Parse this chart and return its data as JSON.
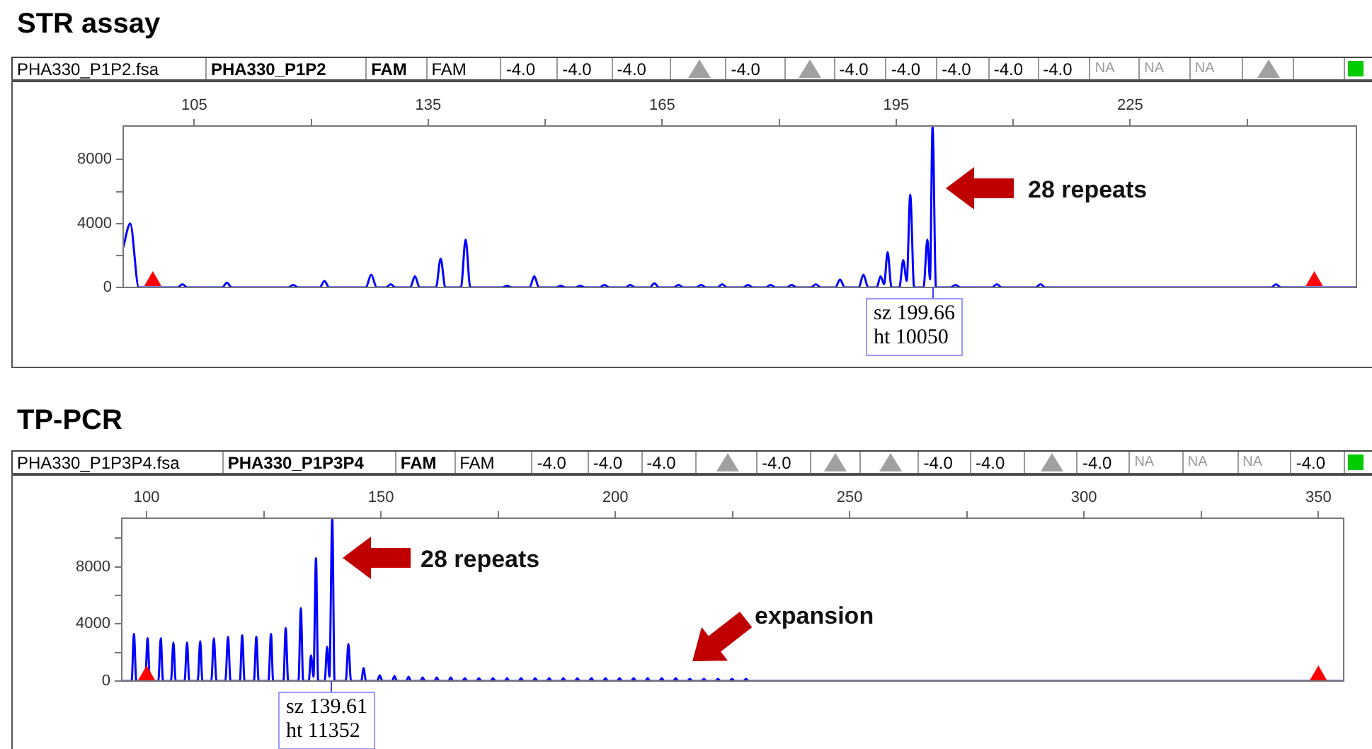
{
  "chart_data": [
    {
      "type": "line",
      "title": "STR assay",
      "marker": "none",
      "annotations": [
        "PHA330_P1P2.fsa",
        "PHA330_P1P2",
        "FAM",
        "FAM",
        "-4.0",
        "-4.0",
        "-4.0",
        "-4.0",
        "-4.0",
        "-4.0",
        "-4.0",
        "-4.0",
        "-4.0",
        "NA",
        "NA",
        "NA",
        "sz 199.66\nht 10050",
        "28 repeats"
      ],
      "xlim": [
        95.9,
        254
      ],
      "xticks": [
        105,
        {
          "value": 120,
          "label": null
        },
        135,
        {
          "value": 150,
          "label": null
        },
        165,
        {
          "value": 180,
          "label": null
        },
        195,
        {
          "value": 210,
          "label": null
        },
        225,
        {
          "value": 240,
          "label": null
        }
      ],
      "ylim": [
        0,
        10100
      ],
      "yticks": [
        0,
        {
          "value": 2000,
          "label": null
        },
        4000,
        {
          "value": 6000,
          "label": null
        },
        8000
      ],
      "series": [
        {
          "color": "#0000ff",
          "x": [
            95.9,
            96.8,
            97.9,
            102.9,
            103.5,
            104.1,
            108.6,
            109.2,
            109.8,
            117.1,
            117.7,
            118.3,
            121.1,
            121.7,
            122.3,
            127.0,
            127.7,
            128.4,
            129.6,
            130.2,
            130.8,
            132.7,
            133.3,
            133.9,
            136.0,
            136.6,
            137.2,
            139.2,
            139.8,
            140.4,
            144.5,
            145.1,
            145.7,
            148.0,
            148.6,
            149.2,
            151.4,
            152.0,
            152.6,
            153.9,
            154.5,
            155.1,
            157.0,
            157.6,
            158.2,
            160.3,
            160.9,
            161.5,
            163.4,
            164.0,
            164.6,
            166.5,
            167.1,
            167.7,
            169.4,
            170.0,
            170.6,
            172.1,
            172.7,
            173.3,
            175.4,
            176.0,
            176.6,
            178.3,
            178.9,
            179.5,
            181.0,
            181.6,
            182.2,
            184.1,
            184.7,
            185.3,
            187.2,
            187.8,
            188.4,
            190.2,
            190.8,
            191.4,
            192.5,
            193.0,
            193.45,
            193.9,
            194.4,
            195.4,
            195.9,
            196.35,
            196.8,
            197.3,
            198.5,
            199.0,
            199.33,
            199.66,
            200.1,
            202.0,
            202.6,
            203.2,
            207.3,
            207.9,
            208.5,
            212.9,
            213.5,
            214.1,
            243.1,
            243.7,
            244.3,
            254
          ],
          "values": [
            2500,
            4000,
            0,
            0,
            200,
            0,
            0,
            300,
            0,
            0,
            150,
            0,
            0,
            400,
            0,
            0,
            800,
            0,
            0,
            200,
            0,
            0,
            700,
            0,
            0,
            1800,
            0,
            0,
            3000,
            0,
            0,
            100,
            0,
            0,
            700,
            0,
            0,
            100,
            0,
            0,
            100,
            0,
            0,
            150,
            0,
            0,
            150,
            0,
            0,
            250,
            0,
            0,
            150,
            0,
            0,
            150,
            0,
            0,
            200,
            0,
            0,
            150,
            0,
            0,
            150,
            0,
            0,
            150,
            0,
            0,
            200,
            0,
            0,
            500,
            0,
            0,
            800,
            0,
            0,
            700,
            200,
            2200,
            0,
            0,
            1700,
            400,
            5800,
            0,
            0,
            3000,
            500,
            10050,
            0,
            0,
            150,
            0,
            0,
            200,
            0,
            0,
            200,
            0,
            0,
            200,
            0,
            0
          ]
        },
        {
          "type": "scatter",
          "marker": "triangle",
          "color": "#ff0000",
          "x": [
            99.7,
            248.6
          ],
          "values": [
            400,
            400
          ]
        }
      ]
    },
    {
      "type": "line",
      "title": "TP-PCR",
      "marker": "none",
      "annotations": [
        "PHA330_P1P3P4.fsa",
        "PHA330_P1P3P4",
        "FAM",
        "FAM",
        "-4.0",
        "-4.0",
        "-4.0",
        "-4.0",
        "-4.0",
        "-4.0",
        "-4.0",
        "NA",
        "NA",
        "NA",
        "-4.0",
        "sz 139.61\nht 11352",
        "28 repeats",
        "expansion"
      ],
      "xlim": [
        94.7,
        355.4
      ],
      "xticks": [
        100,
        {
          "value": 125,
          "label": null
        },
        150,
        {
          "value": 175,
          "label": null
        },
        200,
        {
          "value": 225,
          "label": null
        },
        250,
        {
          "value": 275,
          "label": null
        },
        300,
        {
          "value": 325,
          "label": null
        },
        350
      ],
      "ylim": [
        0,
        11400
      ],
      "yticks": [
        0,
        {
          "value": 2000,
          "label": null
        },
        4000,
        {
          "value": 6000,
          "label": null
        },
        8000,
        {
          "value": 10000,
          "label": null
        }
      ],
      "series": [
        {
          "color": "#0000ff",
          "x": [
            94.7,
            96.8,
            97.3,
            97.8,
            99.7,
            100.21,
            100.7,
            102.5,
            103.02,
            103.5,
            105.2,
            105.72,
            106.2,
            108.1,
            108.63,
            109.1,
            110.9,
            111.44,
            111.9,
            113.8,
            114.35,
            114.9,
            116.8,
            117.37,
            117.9,
            119.9,
            120.39,
            120.9,
            122.9,
            123.41,
            123.9,
            126.0,
            126.54,
            127.0,
            129.2,
            129.67,
            130.2,
            132.4,
            132.91,
            133.4,
            134.6,
            135.07,
            135.6,
            136.14,
            136.6,
            138.0,
            138.52,
            139.0,
            139.61,
            140.1,
            142.5,
            143.05,
            143.6,
            145.8,
            146.29,
            146.8,
            149.2,
            149.74,
            150.3,
            152.4,
            152.87,
            153.4,
            155.4,
            155.89,
            156.4,
            158.4,
            158.9,
            159.4,
            161.4,
            161.9,
            162.4,
            164.4,
            164.9,
            165.4,
            167.4,
            167.9,
            168.4,
            170.4,
            170.9,
            171.4,
            173.4,
            173.9,
            174.4,
            176.4,
            176.9,
            177.4,
            179.4,
            179.9,
            180.4,
            182.4,
            182.9,
            183.4,
            185.4,
            185.9,
            186.4,
            188.4,
            188.9,
            189.4,
            191.4,
            191.9,
            192.4,
            194.4,
            194.9,
            195.4,
            197.4,
            197.9,
            198.4,
            200.4,
            200.9,
            201.4,
            203.4,
            203.9,
            204.4,
            206.4,
            206.9,
            207.4,
            209.4,
            209.9,
            210.4,
            212.4,
            212.9,
            213.4,
            215.4,
            215.9,
            216.4,
            218.4,
            218.9,
            219.4,
            221.4,
            221.9,
            222.4,
            224.4,
            224.9,
            225.4,
            227.4,
            227.9,
            228.4,
            355.4
          ],
          "values": [
            0,
            0,
            3300,
            0,
            0,
            3000,
            0,
            0,
            3000,
            0,
            0,
            2700,
            0,
            0,
            2700,
            0,
            0,
            2800,
            0,
            0,
            3000,
            0,
            0,
            3100,
            0,
            0,
            3200,
            0,
            0,
            3100,
            0,
            0,
            3300,
            0,
            0,
            3700,
            0,
            0,
            5100,
            0,
            0,
            1800,
            300,
            8600,
            0,
            0,
            2400,
            300,
            11352,
            0,
            0,
            2600,
            0,
            0,
            900,
            0,
            0,
            400,
            0,
            0,
            350,
            0,
            0,
            300,
            0,
            0,
            250,
            0,
            0,
            250,
            0,
            0,
            250,
            0,
            0,
            200,
            0,
            0,
            200,
            0,
            0,
            200,
            0,
            0,
            200,
            0,
            0,
            200,
            0,
            0,
            200,
            0,
            0,
            200,
            0,
            0,
            200,
            0,
            0,
            200,
            0,
            0,
            200,
            0,
            0,
            200,
            0,
            0,
            200,
            0,
            0,
            200,
            0,
            0,
            200,
            0,
            0,
            200,
            0,
            0,
            200,
            0,
            0,
            150,
            0,
            0,
            150,
            0,
            0,
            150,
            0,
            0,
            150,
            0,
            0,
            150,
            0,
            0
          ]
        },
        {
          "type": "scatter",
          "marker": "triangle",
          "color": "#ff0000",
          "x": [
            100,
            350
          ],
          "values": [
            400,
            400
          ]
        }
      ]
    }
  ]
}
